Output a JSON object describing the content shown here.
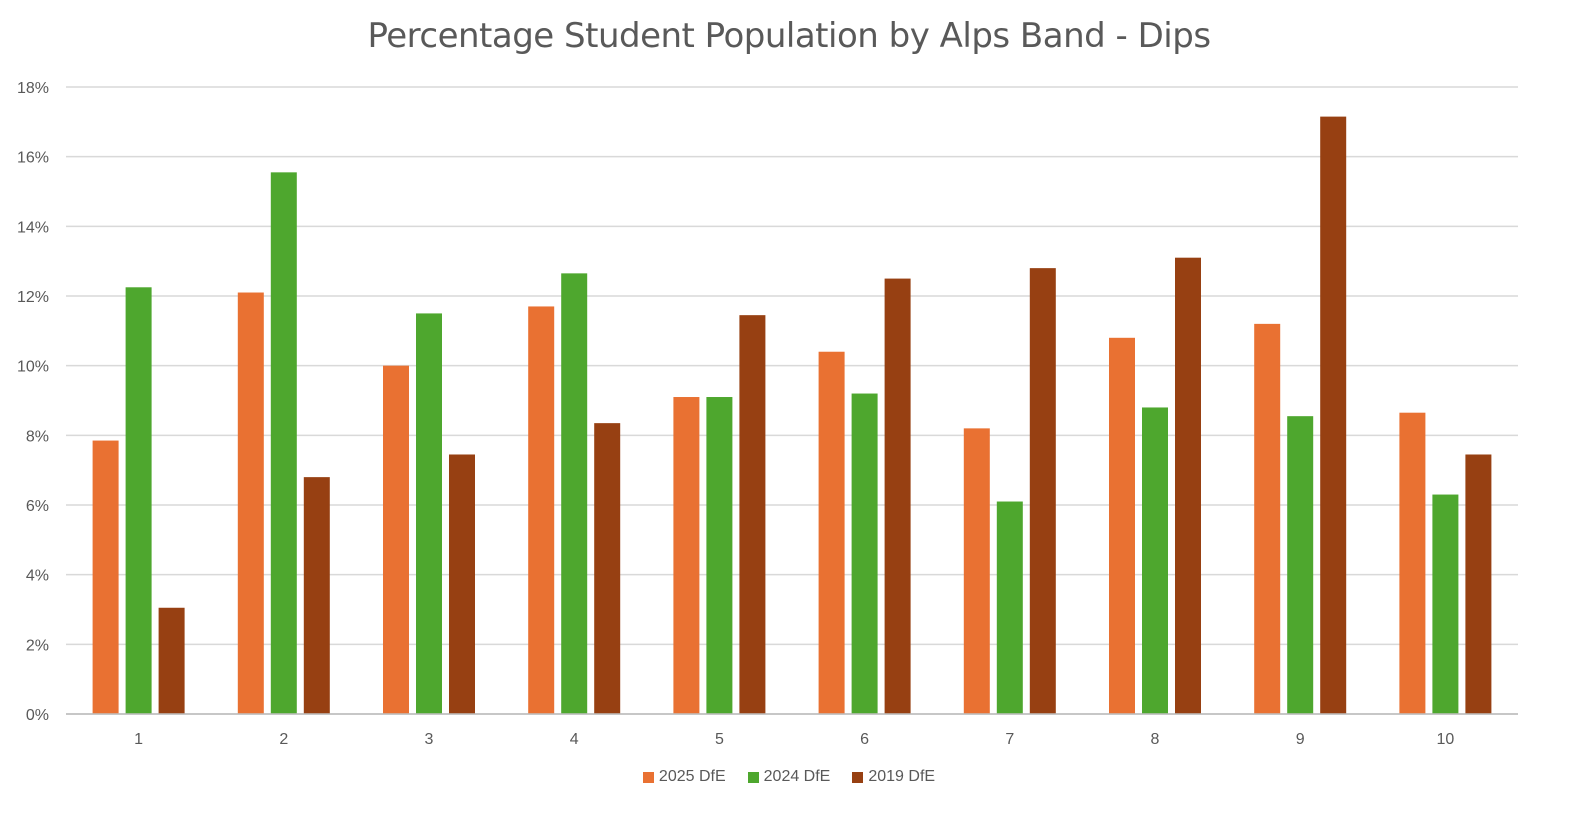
{
  "chart_data": {
    "type": "bar",
    "title": "Percentage Student Population by Alps Band - Dips",
    "xlabel": "",
    "ylabel": "",
    "categories": [
      "1",
      "2",
      "3",
      "4",
      "5",
      "6",
      "7",
      "8",
      "9",
      "10"
    ],
    "ylim": [
      0,
      18
    ],
    "yticks": [
      0,
      2,
      4,
      6,
      8,
      10,
      12,
      14,
      16,
      18
    ],
    "ytick_labels": [
      "0%",
      "2%",
      "4%",
      "6%",
      "8%",
      "10%",
      "12%",
      "14%",
      "16%",
      "18%"
    ],
    "grid": true,
    "legend_position": "bottom",
    "series": [
      {
        "name": "2025 DfE",
        "color": "#E97132",
        "values": [
          7.85,
          12.1,
          10.0,
          11.7,
          9.1,
          10.4,
          8.2,
          10.8,
          11.2,
          8.65
        ]
      },
      {
        "name": "2024 DfE",
        "color": "#4EA72E",
        "values": [
          12.25,
          15.55,
          11.5,
          12.65,
          9.1,
          9.2,
          6.1,
          8.8,
          8.55,
          6.3
        ]
      },
      {
        "name": "2019 DfE",
        "color": "#974012",
        "values": [
          3.05,
          6.8,
          7.45,
          8.35,
          11.45,
          12.5,
          12.8,
          13.1,
          17.15,
          7.45
        ]
      }
    ]
  }
}
